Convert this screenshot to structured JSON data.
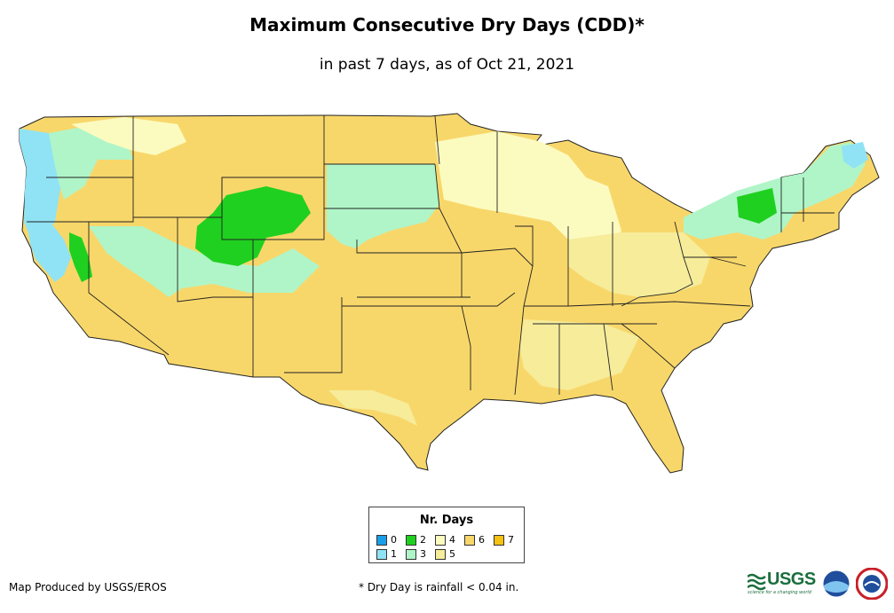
{
  "title": "Maximum Consecutive Dry Days (CDD)*",
  "subtitle": "in past 7 days, as of Oct 21, 2021",
  "legend": {
    "title": "Nr. Days",
    "items": [
      {
        "label": "0",
        "color": "#1a9ee8"
      },
      {
        "label": "1",
        "color": "#8fe3f5"
      },
      {
        "label": "2",
        "color": "#20d020"
      },
      {
        "label": "3",
        "color": "#b0f5c8"
      },
      {
        "label": "4",
        "color": "#fbfbc0"
      },
      {
        "label": "5",
        "color": "#f6ec9a"
      },
      {
        "label": "6",
        "color": "#f8d76a"
      },
      {
        "label": "7",
        "color": "#f5c211"
      }
    ]
  },
  "credit": "Map Produced by USGS/EROS",
  "footnote": "* Dry Day is rainfall < 0.04 in.",
  "logos": {
    "usgs": "USGS",
    "usgs_tagline": "science for a changing world"
  }
}
